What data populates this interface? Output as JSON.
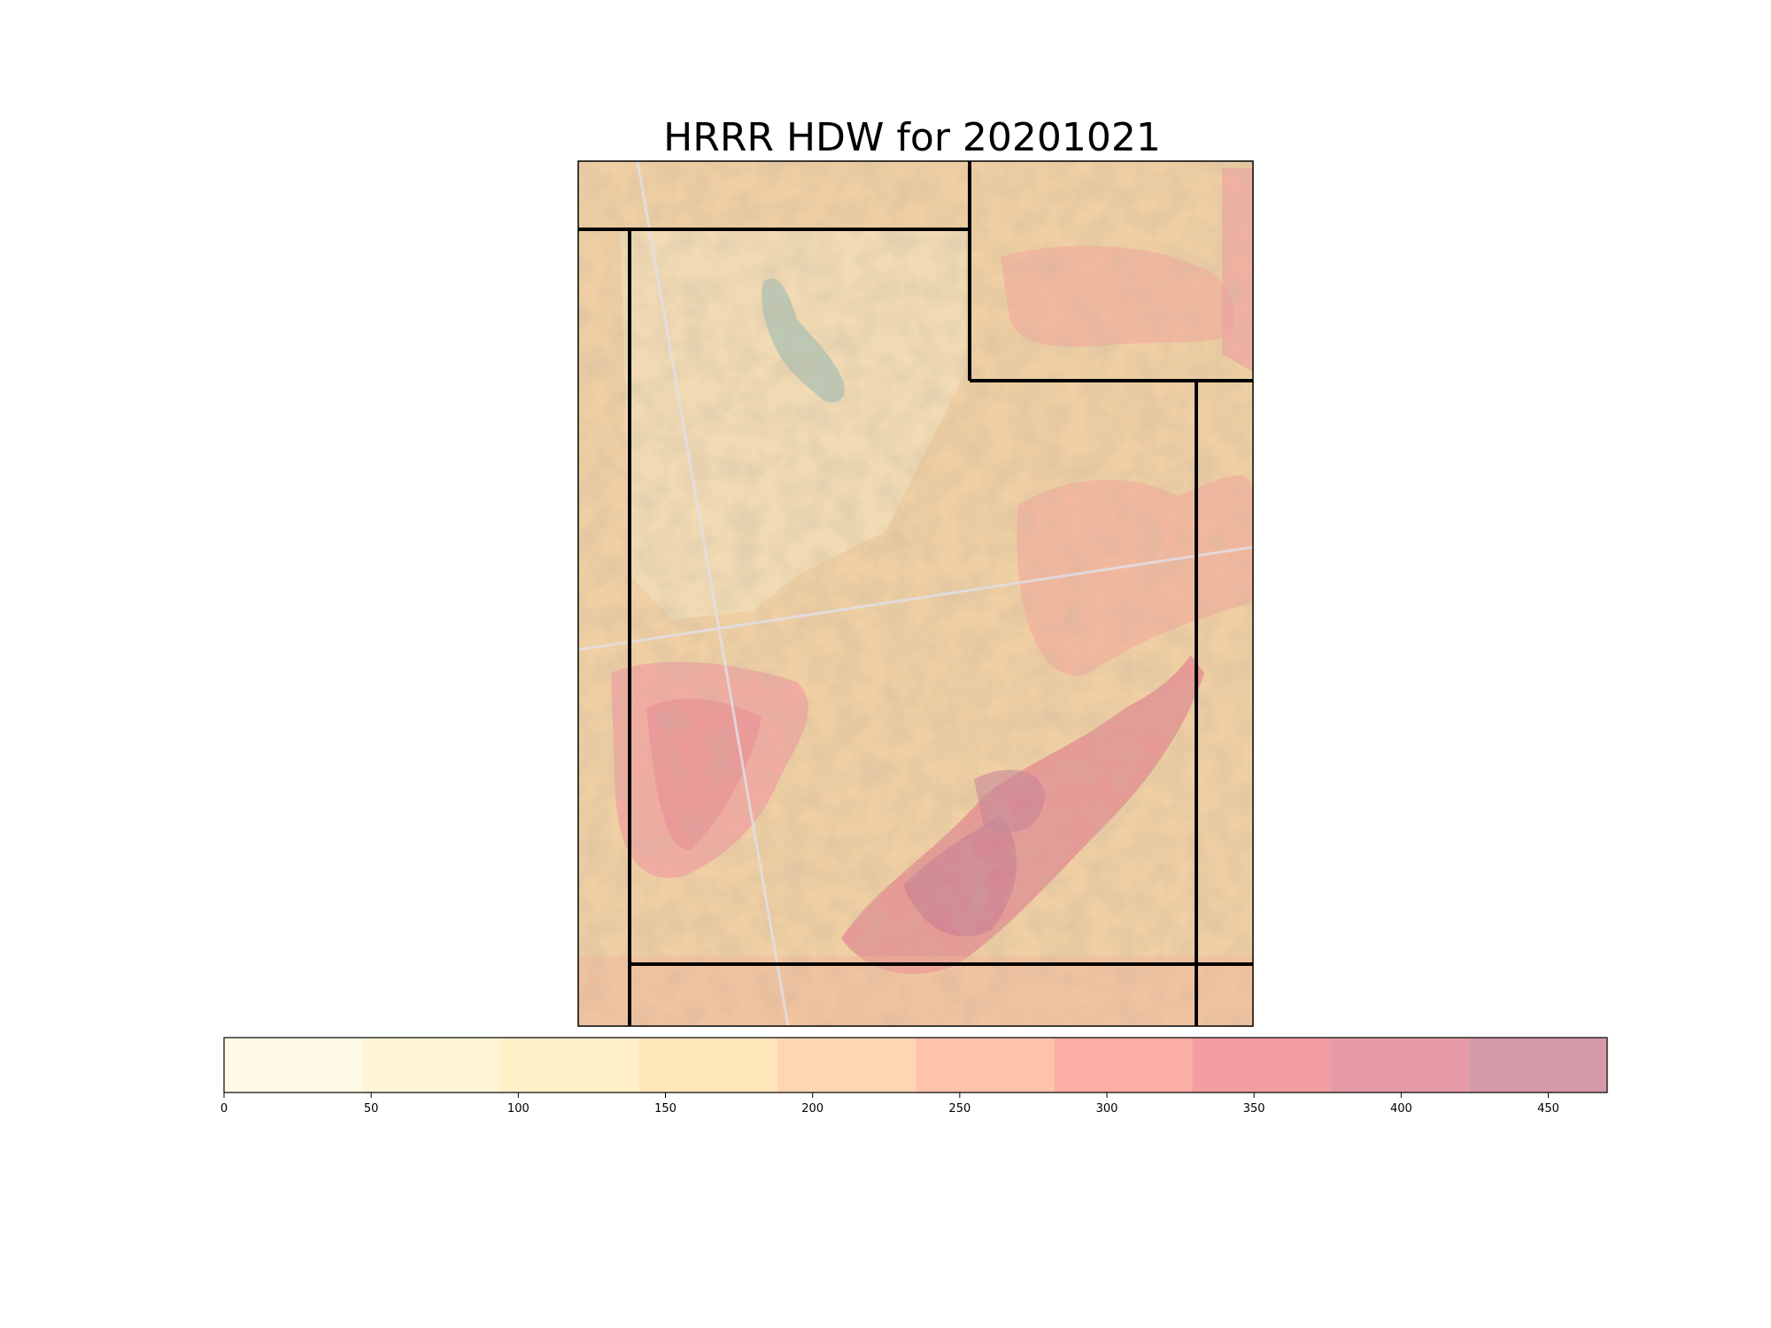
{
  "title": "HRRR HDW for 20201021",
  "colorbar": {
    "levels": [
      0,
      47,
      94,
      141,
      188,
      235,
      282,
      329,
      376,
      423,
      470
    ],
    "colors": [
      "#fffbe6",
      "#fff5d6",
      "#fff0c8",
      "#ffe6b8",
      "#ffd6b2",
      "#ffc3ab",
      "#fbaea4",
      "#f29da0",
      "#e59aa5",
      "#d49aa8"
    ],
    "ticks": [
      0,
      50,
      100,
      150,
      200,
      250,
      300,
      350,
      400,
      450
    ],
    "tick_labels": [
      "0",
      "50",
      "100",
      "150",
      "200",
      "250",
      "300",
      "350",
      "400",
      "450"
    ],
    "vmin": 0,
    "vmax": 470
  },
  "map": {
    "region": "Utah",
    "variable": "HDW"
  }
}
